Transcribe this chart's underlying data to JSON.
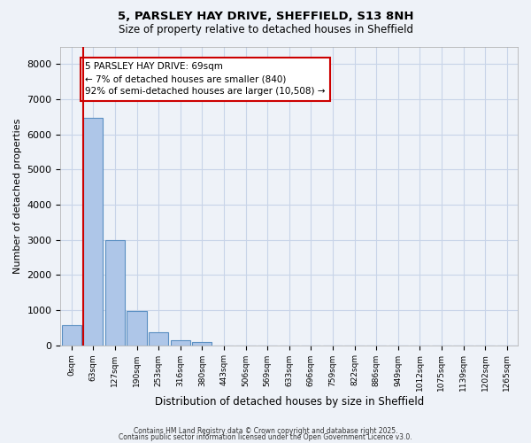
{
  "title_line1": "5, PARSLEY HAY DRIVE, SHEFFIELD, S13 8NH",
  "title_line2": "Size of property relative to detached houses in Sheffield",
  "bar_values": [
    570,
    6480,
    2980,
    980,
    360,
    150,
    80,
    0,
    0,
    0,
    0,
    0,
    0,
    0,
    0,
    0,
    0,
    0,
    0,
    0,
    0
  ],
  "categories": [
    "0sqm",
    "63sqm",
    "127sqm",
    "190sqm",
    "253sqm",
    "316sqm",
    "380sqm",
    "443sqm",
    "506sqm",
    "569sqm",
    "633sqm",
    "696sqm",
    "759sqm",
    "822sqm",
    "886sqm",
    "949sqm",
    "1012sqm",
    "1075sqm",
    "1139sqm",
    "1202sqm",
    "1265sqm"
  ],
  "bar_color": "#aec6e8",
  "bar_edge_color": "#5a8fc2",
  "ylabel": "Number of detached properties",
  "xlabel": "Distribution of detached houses by size in Sheffield",
  "ylim": [
    0,
    8500
  ],
  "yticks": [
    0,
    1000,
    2000,
    3000,
    4000,
    5000,
    6000,
    7000,
    8000
  ],
  "property_line_x": 0.55,
  "annotation_text": "5 PARSLEY HAY DRIVE: 69sqm\n← 7% of detached houses are smaller (840)\n92% of semi-detached houses are larger (10,508) →",
  "annotation_box_color": "#ffffff",
  "annotation_box_edge": "#cc0000",
  "footer_line1": "Contains HM Land Registry data © Crown copyright and database right 2025.",
  "footer_line2": "Contains public sector information licensed under the Open Government Licence v3.0.",
  "grid_color": "#c8d4e8",
  "background_color": "#eef2f8"
}
